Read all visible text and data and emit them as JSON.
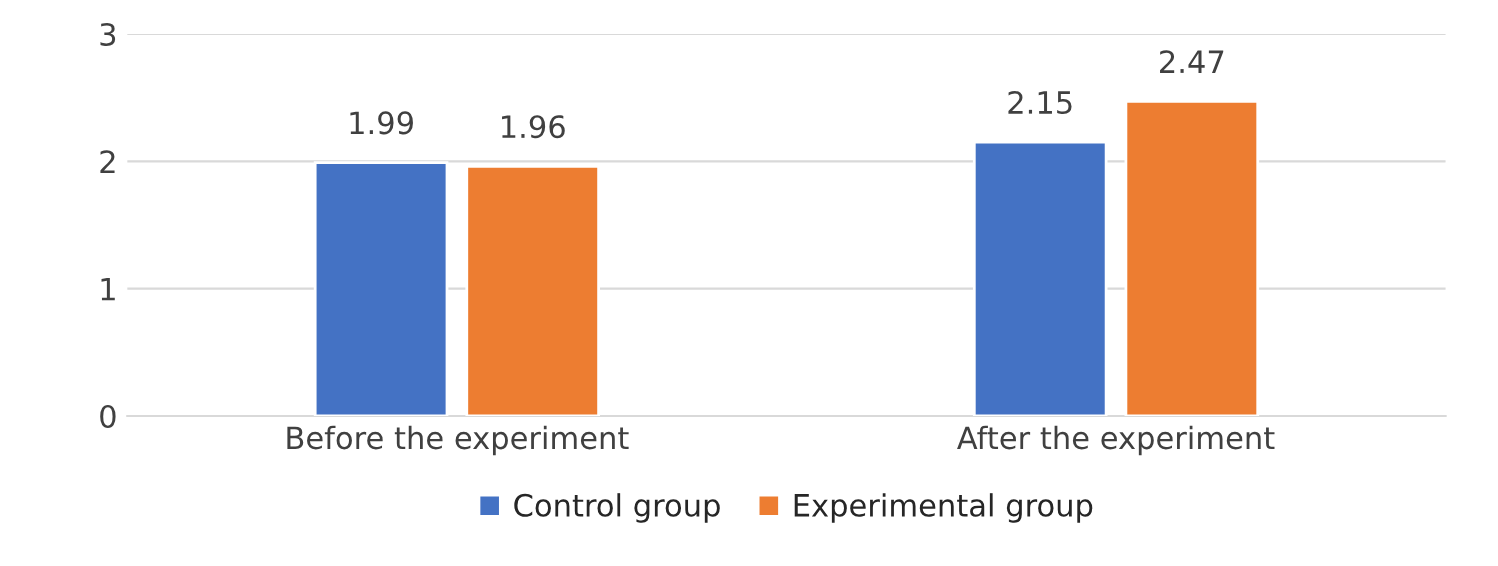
{
  "chart_data": {
    "type": "bar",
    "categories": [
      "Before the experiment",
      "After the experiment"
    ],
    "series": [
      {
        "name": "Control group",
        "color": "#4472c4",
        "values": [
          1.99,
          2.15
        ]
      },
      {
        "name": "Experimental group",
        "color": "#ed7d31",
        "values": [
          1.96,
          2.47
        ]
      }
    ],
    "ylim": [
      0,
      3
    ],
    "yticks": [
      0,
      1,
      2,
      3
    ],
    "grid": "y",
    "legend": "bottom",
    "data_labels": true
  }
}
